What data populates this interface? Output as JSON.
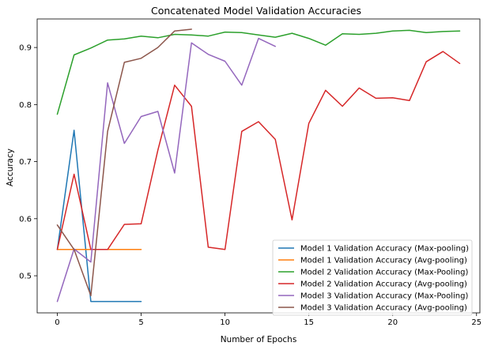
{
  "chart_data": {
    "type": "line",
    "title": "Concatenated Model Validation Accuracies",
    "xlabel": "Number of Epochs",
    "ylabel": "Accuracy",
    "xlim": [
      -1.2,
      25.2
    ],
    "ylim": [
      0.435,
      0.95
    ],
    "xticks": [
      0,
      5,
      10,
      15,
      20,
      25
    ],
    "yticks": [
      0.5,
      0.6,
      0.7,
      0.8,
      0.9
    ],
    "xtick_labels": [
      "0",
      "5",
      "10",
      "15",
      "20",
      "25"
    ],
    "ytick_labels": [
      "0.5",
      "0.6",
      "0.7",
      "0.8",
      "0.9"
    ],
    "grid": false,
    "legend_position": "lower-right",
    "series": [
      {
        "name": "Model 1 Validation Accuracy (Max-pooling)",
        "color": "#1f77b4",
        "x": [
          0,
          1,
          2,
          3,
          4,
          5
        ],
        "values": [
          0.546,
          0.755,
          0.455,
          0.455,
          0.455,
          0.455
        ]
      },
      {
        "name": "Model 1 Validation Accuracy (Avg-pooling)",
        "color": "#ff7f0e",
        "x": [
          0,
          1,
          2,
          3,
          4,
          5
        ],
        "values": [
          0.546,
          0.546,
          0.546,
          0.546,
          0.546,
          0.546
        ]
      },
      {
        "name": "Model 2 Validation Accuracy (Max-Pooling)",
        "color": "#2ca02c",
        "x": [
          0,
          1,
          2,
          3,
          4,
          5,
          6,
          7,
          8,
          9,
          10,
          11,
          12,
          13,
          14,
          15,
          16,
          17,
          18,
          19,
          20,
          21,
          22,
          23,
          24
        ],
        "values": [
          0.783,
          0.887,
          0.899,
          0.913,
          0.915,
          0.92,
          0.917,
          0.923,
          0.922,
          0.92,
          0.927,
          0.926,
          0.922,
          0.918,
          0.925,
          0.916,
          0.904,
          0.924,
          0.923,
          0.925,
          0.929,
          0.93,
          0.926,
          0.928,
          0.929
        ]
      },
      {
        "name": "Model 2 Validation Accuracy (Avg-pooling)",
        "color": "#d62728",
        "x": [
          0,
          1,
          2,
          3,
          4,
          5,
          6,
          7,
          8,
          9,
          10,
          11,
          12,
          13,
          14,
          15,
          16,
          17,
          18,
          19,
          20,
          21,
          22,
          23,
          24
        ],
        "values": [
          0.546,
          0.678,
          0.546,
          0.546,
          0.59,
          0.591,
          0.72,
          0.834,
          0.797,
          0.55,
          0.546,
          0.753,
          0.77,
          0.739,
          0.598,
          0.767,
          0.825,
          0.797,
          0.829,
          0.811,
          0.812,
          0.807,
          0.875,
          0.893,
          0.872
        ]
      },
      {
        "name": "Model 3 Validation Accuracy (Max-Pooling)",
        "color": "#9467bd",
        "x": [
          0,
          1,
          2,
          3,
          4,
          5,
          6,
          7,
          8,
          9,
          10,
          11,
          12,
          13
        ],
        "values": [
          0.455,
          0.547,
          0.524,
          0.838,
          0.732,
          0.779,
          0.788,
          0.68,
          0.908,
          0.888,
          0.876,
          0.834,
          0.916,
          0.902
        ]
      },
      {
        "name": "Model 3 Validation Accuracy (Avg-pooling)",
        "color": "#8c564b",
        "x": [
          0,
          1,
          2,
          3,
          4,
          5,
          6,
          7,
          8
        ],
        "values": [
          0.589,
          0.546,
          0.465,
          0.753,
          0.874,
          0.881,
          0.9,
          0.929,
          0.932
        ]
      }
    ]
  }
}
